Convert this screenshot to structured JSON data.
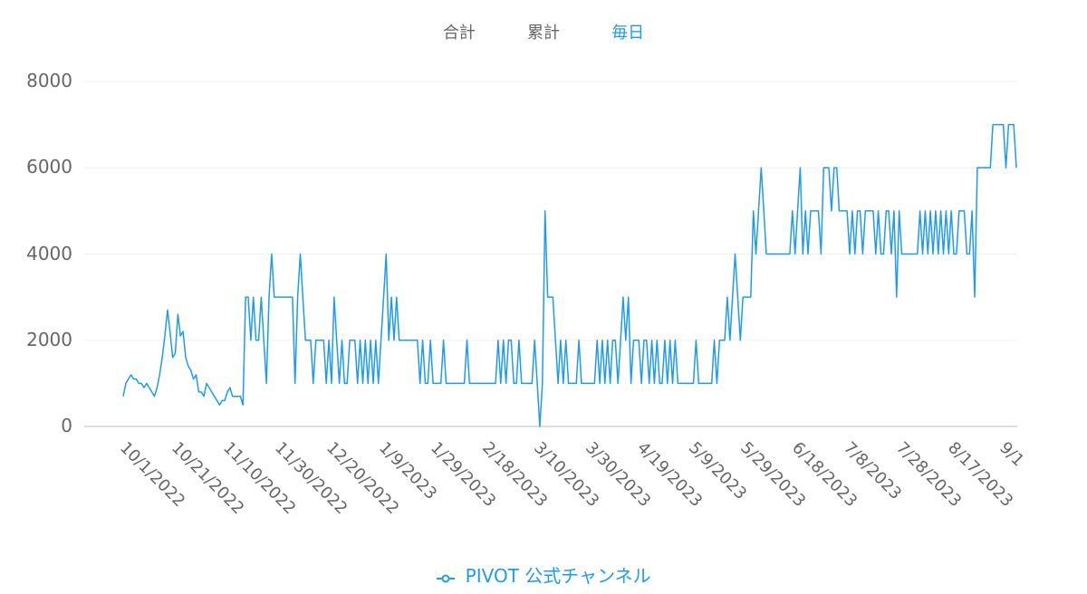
{
  "tabs": [
    {
      "label": "合計",
      "active": false
    },
    {
      "label": "累計",
      "active": false
    },
    {
      "label": "毎日",
      "active": true
    }
  ],
  "legend": {
    "label": "PIVOT 公式チャンネル",
    "color": "#1e9bf0"
  },
  "chart_data": {
    "type": "line",
    "title": "",
    "xlabel": "",
    "ylabel": "",
    "ylim": [
      0,
      8000
    ],
    "yticks": [
      0,
      2000,
      4000,
      6000,
      8000
    ],
    "ytick_labels": [
      "0",
      "2000",
      "4000",
      "6000",
      "8000"
    ],
    "grid": true,
    "legend_position": "bottom",
    "x_start": "9/25/2022",
    "x_end": "9/13/2023",
    "xtick_labels": [
      "10/1/2022",
      "10/21/2022",
      "11/10/2022",
      "11/30/2022",
      "12/20/2022",
      "1/9/2023",
      "1/29/2023",
      "2/18/2023",
      "3/10/2023",
      "3/30/2023",
      "4/19/2023",
      "5/9/2023",
      "5/29/2023",
      "6/18/2023",
      "7/8/2023",
      "7/28/2023",
      "8/17/2023",
      "9/1"
    ],
    "series": [
      {
        "name": "PIVOT 公式チャンネル",
        "color": "#1e9bf0",
        "values": [
          700,
          1000,
          1100,
          1200,
          1100,
          1100,
          1000,
          1000,
          900,
          1000,
          900,
          800,
          700,
          900,
          1200,
          1600,
          2100,
          2700,
          2200,
          1600,
          1700,
          2600,
          2100,
          2200,
          1600,
          1400,
          1300,
          1100,
          1200,
          800,
          800,
          700,
          1000,
          900,
          800,
          700,
          600,
          500,
          600,
          600,
          800,
          900,
          700,
          700,
          700,
          700,
          500,
          3000,
          3000,
          2000,
          3000,
          2000,
          2000,
          3000,
          2000,
          1000,
          3000,
          4000,
          3000,
          3000,
          3000,
          3000,
          3000,
          3000,
          3000,
          3000,
          1000,
          3000,
          4000,
          3000,
          2000,
          2000,
          2000,
          1000,
          2000,
          2000,
          2000,
          2000,
          1000,
          2000,
          1000,
          3000,
          2000,
          1000,
          2000,
          1000,
          1000,
          2000,
          2000,
          2000,
          1000,
          2000,
          1000,
          2000,
          1000,
          2000,
          1000,
          2000,
          1000,
          2000,
          3000,
          4000,
          2000,
          3000,
          2000,
          3000,
          2000,
          2000,
          2000,
          2000,
          2000,
          2000,
          2000,
          2000,
          1000,
          2000,
          1000,
          1000,
          2000,
          1000,
          1000,
          1000,
          1000,
          2000,
          1000,
          1000,
          1000,
          1000,
          1000,
          1000,
          1000,
          1000,
          2000,
          1000,
          1000,
          1000,
          1000,
          1000,
          1000,
          1000,
          1000,
          1000,
          1000,
          1000,
          2000,
          1000,
          2000,
          1000,
          2000,
          2000,
          1000,
          1000,
          2000,
          1000,
          1000,
          1000,
          1000,
          1000,
          2000,
          1000,
          0,
          1000,
          5000,
          3000,
          3000,
          3000,
          2000,
          1000,
          2000,
          1000,
          2000,
          1000,
          1000,
          1000,
          1000,
          2000,
          1000,
          1000,
          1000,
          1000,
          1000,
          1000,
          2000,
          1000,
          2000,
          1000,
          2000,
          1000,
          2000,
          2000,
          1000,
          2000,
          3000,
          2000,
          3000,
          1000,
          2000,
          2000,
          2000,
          1000,
          2000,
          2000,
          1000,
          2000,
          1000,
          2000,
          1000,
          1000,
          2000,
          1000,
          2000,
          1000,
          2000,
          1000,
          1000,
          1000,
          1000,
          1000,
          1000,
          1000,
          2000,
          1000,
          1000,
          1000,
          1000,
          1000,
          1000,
          2000,
          1000,
          2000,
          2000,
          2000,
          3000,
          2000,
          3000,
          4000,
          3000,
          2000,
          3000,
          3000,
          3000,
          3000,
          5000,
          4000,
          5000,
          6000,
          5000,
          4000,
          4000,
          4000,
          4000,
          4000,
          4000,
          4000,
          4000,
          4000,
          4000,
          5000,
          4000,
          5000,
          6000,
          4000,
          5000,
          4000,
          5000,
          5000,
          5000,
          5000,
          4000,
          6000,
          6000,
          6000,
          5000,
          6000,
          6000,
          5000,
          5000,
          5000,
          5000,
          4000,
          5000,
          4000,
          5000,
          5000,
          4000,
          5000,
          5000,
          5000,
          5000,
          4000,
          5000,
          4000,
          4000,
          5000,
          5000,
          4000,
          5000,
          3000,
          5000,
          4000,
          4000,
          4000,
          4000,
          4000,
          4000,
          4000,
          5000,
          4000,
          5000,
          4000,
          5000,
          4000,
          5000,
          4000,
          5000,
          4000,
          5000,
          4000,
          5000,
          4000,
          4000,
          5000,
          5000,
          5000,
          4000,
          4000,
          5000,
          3000,
          6000,
          6000,
          6000,
          6000,
          6000,
          6000,
          7000,
          7000,
          7000,
          7000,
          7000,
          6000,
          7000,
          7000,
          7000,
          6000
        ]
      }
    ]
  }
}
